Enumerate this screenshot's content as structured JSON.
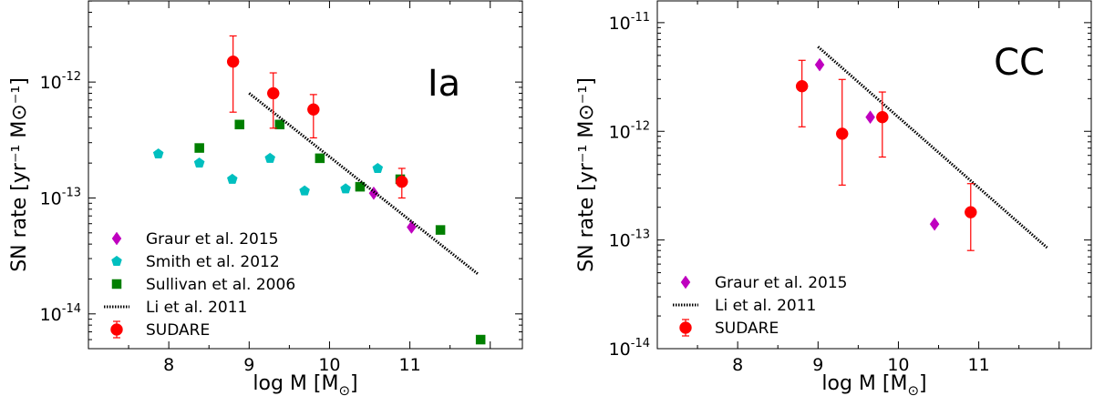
{
  "chart_data": [
    {
      "type": "scatter",
      "panel_label": "Ia",
      "xlabel": "log M [M",
      "xlabel_sub": "⊙",
      "xlabel_close": "]",
      "ylabel": "SN rate [yr⁻¹ M⊙⁻¹]",
      "xlim": [
        7.0,
        12.4
      ],
      "ylim_log10": [
        -14.3,
        -11.3
      ],
      "log_y": true,
      "grid": false,
      "legend_position": "bottom-left",
      "x_ticks": [
        "8",
        "9",
        "10",
        "11"
      ],
      "y_ticks": [
        {
          "exp": -14,
          "base": "10",
          "sup": "-14"
        },
        {
          "exp": -13,
          "base": "10",
          "sup": "-13"
        },
        {
          "exp": -12,
          "base": "10",
          "sup": "-12"
        }
      ],
      "series": [
        {
          "name": "Graur et al. 2015",
          "marker": "diamond",
          "color": "#bf00bf",
          "points": [
            {
              "x": 10.55,
              "y": 1.1e-13
            },
            {
              "x": 11.02,
              "y": 5.6e-14
            }
          ]
        },
        {
          "name": "Smith et al. 2012",
          "marker": "pentagon",
          "color": "#00bfbf",
          "points": [
            {
              "x": 7.87,
              "y": 2.4e-13
            },
            {
              "x": 8.38,
              "y": 2e-13
            },
            {
              "x": 8.79,
              "y": 1.45e-13
            },
            {
              "x": 9.26,
              "y": 2.2e-13
            },
            {
              "x": 9.69,
              "y": 1.15e-13
            },
            {
              "x": 10.2,
              "y": 1.2e-13
            },
            {
              "x": 10.6,
              "y": 1.8e-13
            }
          ]
        },
        {
          "name": "Sullivan et al. 2006",
          "marker": "square",
          "color": "#007f00",
          "points": [
            {
              "x": 8.38,
              "y": 2.7e-13
            },
            {
              "x": 8.88,
              "y": 4.3e-13
            },
            {
              "x": 9.38,
              "y": 4.3e-13
            },
            {
              "x": 9.88,
              "y": 2.2e-13
            },
            {
              "x": 10.38,
              "y": 1.25e-13
            },
            {
              "x": 10.88,
              "y": 1.45e-13
            },
            {
              "x": 11.38,
              "y": 5.3e-14
            },
            {
              "x": 11.88,
              "y": 6e-15
            }
          ]
        },
        {
          "name": "Li et al. 2011",
          "marker": "line-dotted",
          "color": "#000000",
          "points": [
            {
              "x": 9.0,
              "y": 8e-13
            },
            {
              "x": 11.85,
              "y": 2.2e-14
            }
          ]
        },
        {
          "name": "SUDARE",
          "marker": "circle-errorbar",
          "color": "#ff0000",
          "points": [
            {
              "x": 8.8,
              "y": 1.5e-12,
              "ylo": 5.5e-13,
              "yhi": 2.5e-12
            },
            {
              "x": 9.3,
              "y": 8e-13,
              "ylo": 4e-13,
              "yhi": 1.2e-12
            },
            {
              "x": 9.8,
              "y": 5.8e-13,
              "ylo": 3.3e-13,
              "yhi": 7.8e-13
            },
            {
              "x": 10.9,
              "y": 1.38e-13,
              "ylo": 1e-13,
              "yhi": 1.8e-13
            }
          ]
        }
      ]
    },
    {
      "type": "scatter",
      "panel_label": "CC",
      "xlabel": "log M [M",
      "xlabel_sub": "⊙",
      "xlabel_close": "]",
      "ylabel": "SN rate [yr⁻¹ M⊙⁻¹]",
      "xlim": [
        7.0,
        12.4
      ],
      "ylim_log10": [
        -14.0,
        -10.8
      ],
      "log_y": true,
      "grid": false,
      "legend_position": "bottom-left",
      "x_ticks": [
        "8",
        "9",
        "10",
        "11"
      ],
      "y_ticks": [
        {
          "exp": -14,
          "base": "10",
          "sup": "-14"
        },
        {
          "exp": -13,
          "base": "10",
          "sup": "-13"
        },
        {
          "exp": -12,
          "base": "10",
          "sup": "-12"
        },
        {
          "exp": -11,
          "base": "10",
          "sup": "-11"
        }
      ],
      "series": [
        {
          "name": "Graur et al. 2015",
          "marker": "diamond",
          "color": "#bf00bf",
          "points": [
            {
              "x": 9.02,
              "y": 4.1e-12
            },
            {
              "x": 9.65,
              "y": 1.35e-12
            },
            {
              "x": 10.45,
              "y": 1.4e-13
            }
          ]
        },
        {
          "name": "Li et al. 2011",
          "marker": "line-dotted",
          "color": "#000000",
          "points": [
            {
              "x": 9.0,
              "y": 6e-12
            },
            {
              "x": 11.85,
              "y": 8.5e-14
            }
          ]
        },
        {
          "name": "SUDARE",
          "marker": "circle-errorbar",
          "color": "#ff0000",
          "points": [
            {
              "x": 8.8,
              "y": 2.6e-12,
              "ylo": 1.1e-12,
              "yhi": 4.5e-12
            },
            {
              "x": 9.3,
              "y": 9.5e-13,
              "ylo": 3.2e-13,
              "yhi": 3e-12
            },
            {
              "x": 9.8,
              "y": 1.35e-12,
              "ylo": 5.8e-13,
              "yhi": 2.3e-12
            },
            {
              "x": 10.9,
              "y": 1.8e-13,
              "ylo": 8e-14,
              "yhi": 3.3e-13
            }
          ]
        }
      ]
    }
  ]
}
